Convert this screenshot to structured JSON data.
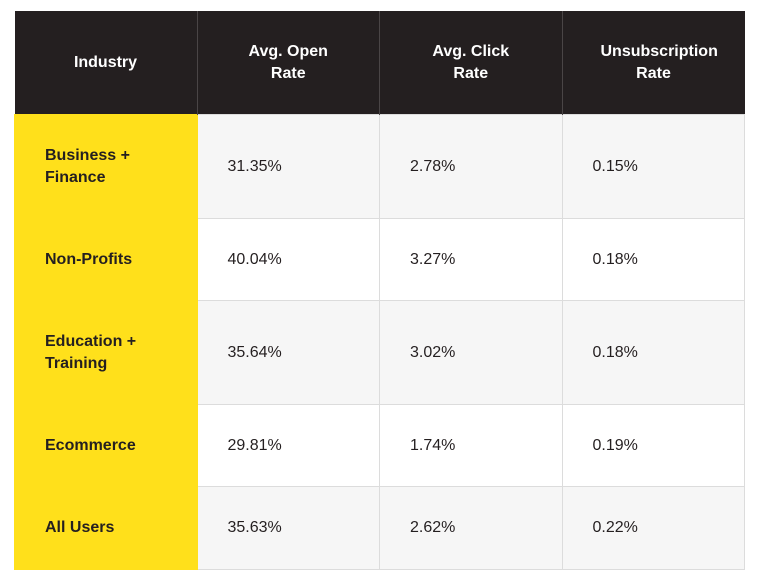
{
  "table": {
    "columns": [
      "Industry",
      "Avg. Open Rate",
      "Avg. Click Rate",
      "Unsubscription Rate"
    ],
    "rows": [
      [
        "Business + Finance",
        "31.35%",
        "2.78%",
        "0.15%"
      ],
      [
        "Non-Profits",
        "40.04%",
        "3.27%",
        "0.18%"
      ],
      [
        "Education + Training",
        "35.64%",
        "3.02%",
        "0.18%"
      ],
      [
        "Ecommerce",
        "29.81%",
        "1.74%",
        "0.19%"
      ],
      [
        "All Users",
        "35.63%",
        "2.62%",
        "0.22%"
      ]
    ]
  }
}
